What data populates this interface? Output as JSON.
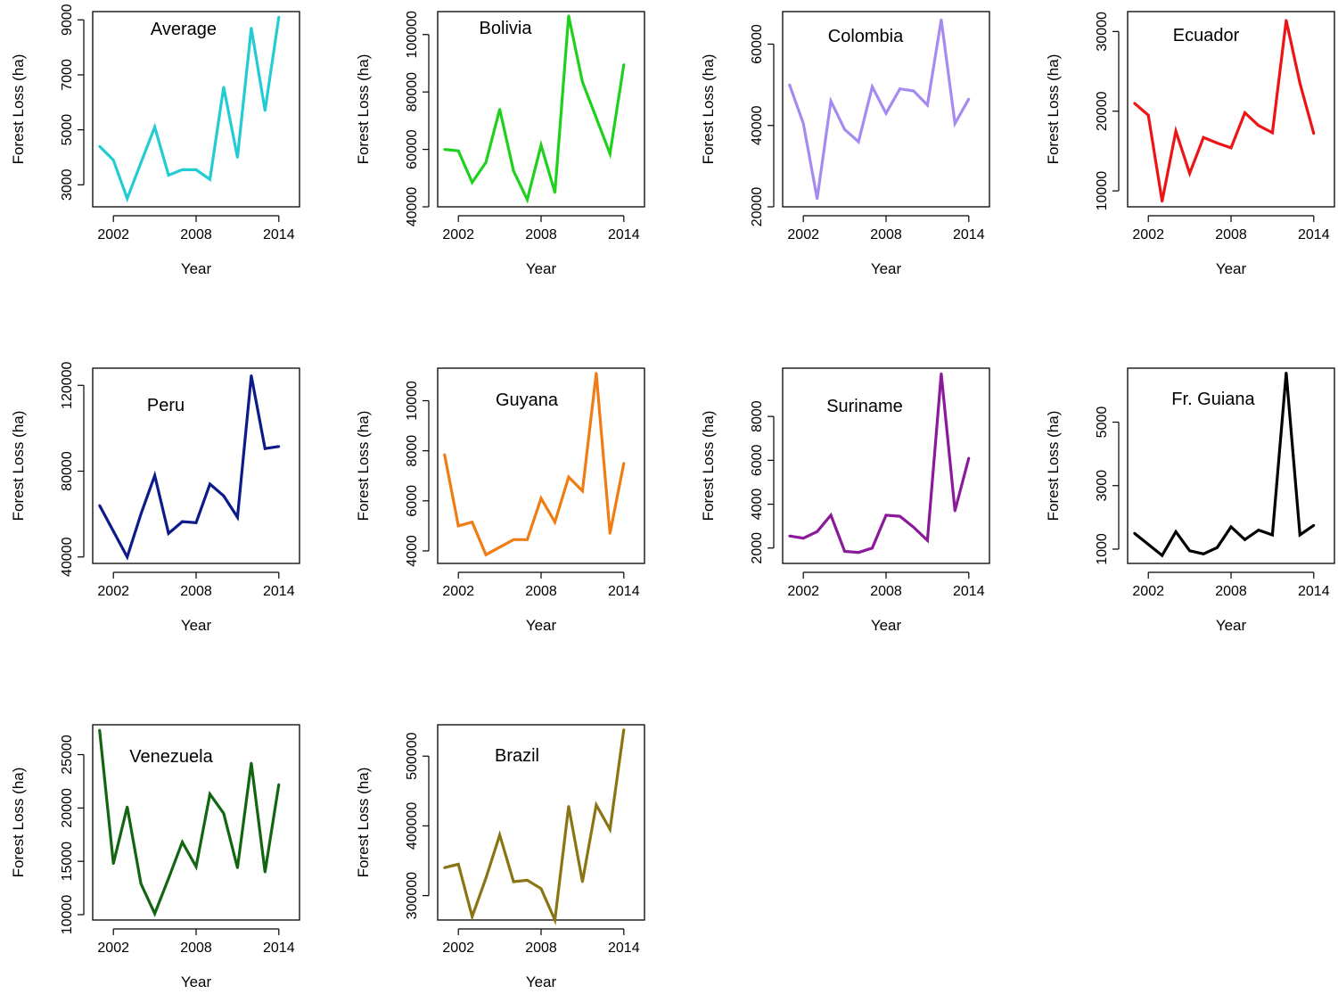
{
  "figure": {
    "common": {
      "xlabel": "Year",
      "ylabel": "Forest Loss (ha)",
      "xticks": [
        2002,
        2008,
        2014
      ],
      "xlim": [
        2000.5,
        2015.5
      ]
    }
  },
  "chart_data": [
    {
      "type": "line",
      "title": "Average",
      "color": "#22CCD2",
      "xlabel": "Year",
      "ylabel": "Forest Loss (ha)",
      "ylim": [
        2200,
        9300
      ],
      "yticks": [
        3000,
        5000,
        7000,
        9000
      ],
      "x": [
        2001,
        2002,
        2003,
        2004,
        2005,
        2006,
        2007,
        2008,
        2009,
        2010,
        2011,
        2012,
        2013,
        2014
      ],
      "series": [
        {
          "values": [
            4400,
            3900,
            2500,
            3800,
            5100,
            3350,
            3550,
            3550,
            3200,
            6550,
            4000,
            8700,
            5700,
            9100
          ]
        }
      ]
    },
    {
      "type": "line",
      "title": "Bolivia",
      "color": "#1DD11D",
      "xlabel": "Year",
      "ylabel": "Forest Loss (ha)",
      "ylim": [
        40000,
        108000
      ],
      "yticks": [
        40000,
        60000,
        80000,
        100000
      ],
      "x": [
        2001,
        2002,
        2003,
        2004,
        2005,
        2006,
        2007,
        2008,
        2009,
        2010,
        2011,
        2012,
        2013,
        2014
      ],
      "series": [
        {
          "values": [
            60000,
            59500,
            48500,
            55500,
            74000,
            52500,
            42500,
            61500,
            45000,
            106500,
            83500,
            71000,
            58500,
            89500
          ]
        }
      ]
    },
    {
      "type": "line",
      "title": "Colombia",
      "color": "#A58AF0",
      "xlabel": "Year",
      "ylabel": "Forest Loss (ha)",
      "ylim": [
        20000,
        68000
      ],
      "yticks": [
        20000,
        40000,
        60000
      ],
      "x": [
        2001,
        2002,
        2003,
        2004,
        2005,
        2006,
        2007,
        2008,
        2009,
        2010,
        2011,
        2012,
        2013,
        2014
      ],
      "series": [
        {
          "values": [
            50000,
            40500,
            22000,
            46000,
            39000,
            36000,
            49500,
            43000,
            49000,
            48500,
            45000,
            66000,
            40500,
            46500
          ]
        }
      ]
    },
    {
      "type": "line",
      "title": "Ecuador",
      "color": "#EC1414",
      "xlabel": "Year",
      "ylabel": "Forest Loss (ha)",
      "ylim": [
        8000,
        32500
      ],
      "yticks": [
        10000,
        20000,
        30000
      ],
      "x": [
        2001,
        2002,
        2003,
        2004,
        2005,
        2006,
        2007,
        2008,
        2009,
        2010,
        2011,
        2012,
        2013,
        2014
      ],
      "series": [
        {
          "values": [
            21000,
            19500,
            8700,
            17500,
            12200,
            16700,
            16000,
            15400,
            19800,
            18200,
            17300,
            31400,
            23500,
            17200
          ]
        }
      ]
    },
    {
      "type": "line",
      "title": "Peru",
      "color": "#0C1A8A",
      "xlabel": "Year",
      "ylabel": "Forest Loss (ha)",
      "ylim": [
        37000,
        128000
      ],
      "yticks": [
        40000,
        80000,
        120000
      ],
      "x": [
        2001,
        2002,
        2003,
        2004,
        2005,
        2006,
        2007,
        2008,
        2009,
        2010,
        2011,
        2012,
        2013,
        2014
      ],
      "series": [
        {
          "values": [
            64000,
            52000,
            40000,
            60000,
            78000,
            51000,
            56500,
            56000,
            74000,
            68500,
            58500,
            124500,
            90500,
            91500
          ]
        }
      ]
    },
    {
      "type": "line",
      "title": "Guyana",
      "color": "#F07C14",
      "xlabel": "Year",
      "ylabel": "Forest Loss (ha)",
      "ylim": [
        3500,
        11300
      ],
      "yticks": [
        4000,
        6000,
        8000,
        10000
      ],
      "x": [
        2001,
        2002,
        2003,
        2004,
        2005,
        2006,
        2007,
        2008,
        2009,
        2010,
        2011,
        2012,
        2013,
        2014
      ],
      "series": [
        {
          "values": [
            7850,
            5000,
            5150,
            3850,
            4150,
            4450,
            4450,
            6100,
            5150,
            6950,
            6400,
            11100,
            4700,
            7500
          ]
        }
      ]
    },
    {
      "type": "line",
      "title": "Suriname",
      "color": "#8A1A9A",
      "xlabel": "Year",
      "ylabel": "Forest Loss (ha)",
      "ylim": [
        1300,
        10200
      ],
      "yticks": [
        2000,
        4000,
        6000,
        8000
      ],
      "x": [
        2001,
        2002,
        2003,
        2004,
        2005,
        2006,
        2007,
        2008,
        2009,
        2010,
        2011,
        2012,
        2013,
        2014
      ],
      "series": [
        {
          "values": [
            2550,
            2450,
            2750,
            3500,
            1850,
            1800,
            2000,
            3500,
            3450,
            2950,
            2350,
            9950,
            3700,
            6100
          ]
        }
      ]
    },
    {
      "type": "line",
      "title": "Fr. Guiana",
      "color": "#000000",
      "xlabel": "Year",
      "ylabel": "Forest Loss (ha)",
      "ylim": [
        550,
        6700
      ],
      "yticks": [
        1000,
        3000,
        5000
      ],
      "x": [
        2001,
        2002,
        2003,
        2004,
        2005,
        2006,
        2007,
        2008,
        2009,
        2010,
        2011,
        2012,
        2013,
        2014
      ],
      "series": [
        {
          "values": [
            1500,
            1150,
            800,
            1550,
            950,
            850,
            1050,
            1700,
            1300,
            1600,
            1450,
            6550,
            1450,
            1750
          ]
        }
      ]
    },
    {
      "type": "line",
      "title": "Venezuela",
      "color": "#126612",
      "xlabel": "Year",
      "ylabel": "Forest Loss (ha)",
      "ylim": [
        9500,
        27800
      ],
      "yticks": [
        10000,
        15000,
        20000,
        25000
      ],
      "x": [
        2001,
        2002,
        2003,
        2004,
        2005,
        2006,
        2007,
        2008,
        2009,
        2010,
        2011,
        2012,
        2013,
        2014
      ],
      "series": [
        {
          "values": [
            27300,
            14800,
            20100,
            12900,
            10100,
            13400,
            16800,
            14500,
            21300,
            19500,
            14400,
            24200,
            14000,
            22200
          ]
        }
      ]
    },
    {
      "type": "line",
      "title": "Brazil",
      "color": "#8A7414",
      "xlabel": "Year",
      "ylabel": "Forest Loss (ha)",
      "ylim": [
        265000,
        545000
      ],
      "yticks": [
        300000,
        400000,
        500000
      ],
      "x": [
        2001,
        2002,
        2003,
        2004,
        2005,
        2006,
        2007,
        2008,
        2009,
        2010,
        2011,
        2012,
        2013,
        2014
      ],
      "series": [
        {
          "values": [
            340000,
            345000,
            270000,
            325000,
            387000,
            320000,
            322000,
            310000,
            265000,
            428000,
            320000,
            430000,
            395000,
            538000
          ]
        }
      ]
    }
  ]
}
